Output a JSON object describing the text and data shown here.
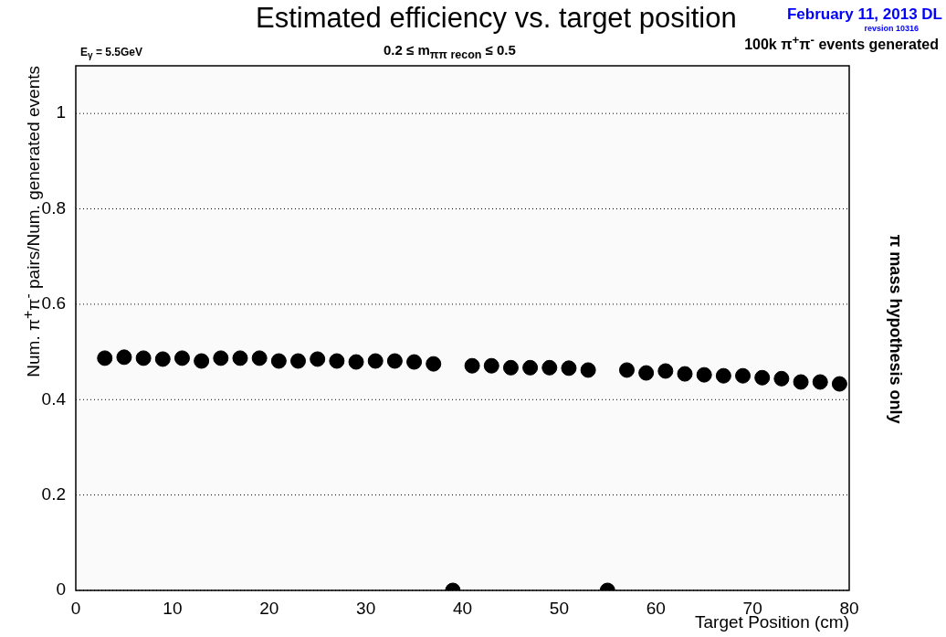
{
  "chart_data": {
    "type": "scatter",
    "title": "Estimated efficiency vs. target position",
    "xlabel": "Target Position (cm)",
    "ylabel": "Num. π$^{+}$π$^{-}$ pairs/Num. generated events",
    "annotations": [
      "February 11, 2013 DL",
      "revsion 10316",
      "100k π$^{+}$π$^{-}$ events generated",
      "E$_{γ}$ = 5.5GeV",
      "0.2 ≤ m$_{ππ recon}$ ≤ 0.5",
      "π mass hypothesis only"
    ],
    "x": [
      3,
      5,
      7,
      9,
      11,
      13,
      15,
      17,
      19,
      21,
      23,
      25,
      27,
      29,
      31,
      33,
      35,
      37,
      39,
      41,
      43,
      45,
      47,
      49,
      51,
      53,
      55,
      57,
      59,
      61,
      63,
      65,
      67,
      69,
      71,
      73,
      75,
      77,
      79
    ],
    "series": [
      {
        "color": "#000000",
        "values": [
          0.487,
          0.489,
          0.487,
          0.485,
          0.487,
          0.481,
          0.487,
          0.487,
          0.487,
          0.481,
          0.481,
          0.485,
          0.481,
          0.479,
          0.481,
          0.481,
          0.479,
          0.475,
          0,
          0.471,
          0.471,
          0.467,
          0.467,
          0.467,
          0.466,
          0.462,
          0,
          0.462,
          0.456,
          0.46,
          0.454,
          0.452,
          0.45,
          0.45,
          0.446,
          0.444,
          0.437,
          0.437,
          0.433
        ]
      }
    ],
    "xlim": [
      0,
      80
    ],
    "xticks": [
      0,
      10,
      20,
      30,
      40,
      50,
      60,
      70,
      80
    ],
    "ylim": [
      0,
      1.1
    ],
    "yticks": [
      0,
      0.2,
      0.4,
      0.6,
      0.8,
      1
    ],
    "grid": "y",
    "marker": "circle",
    "legend": false
  }
}
